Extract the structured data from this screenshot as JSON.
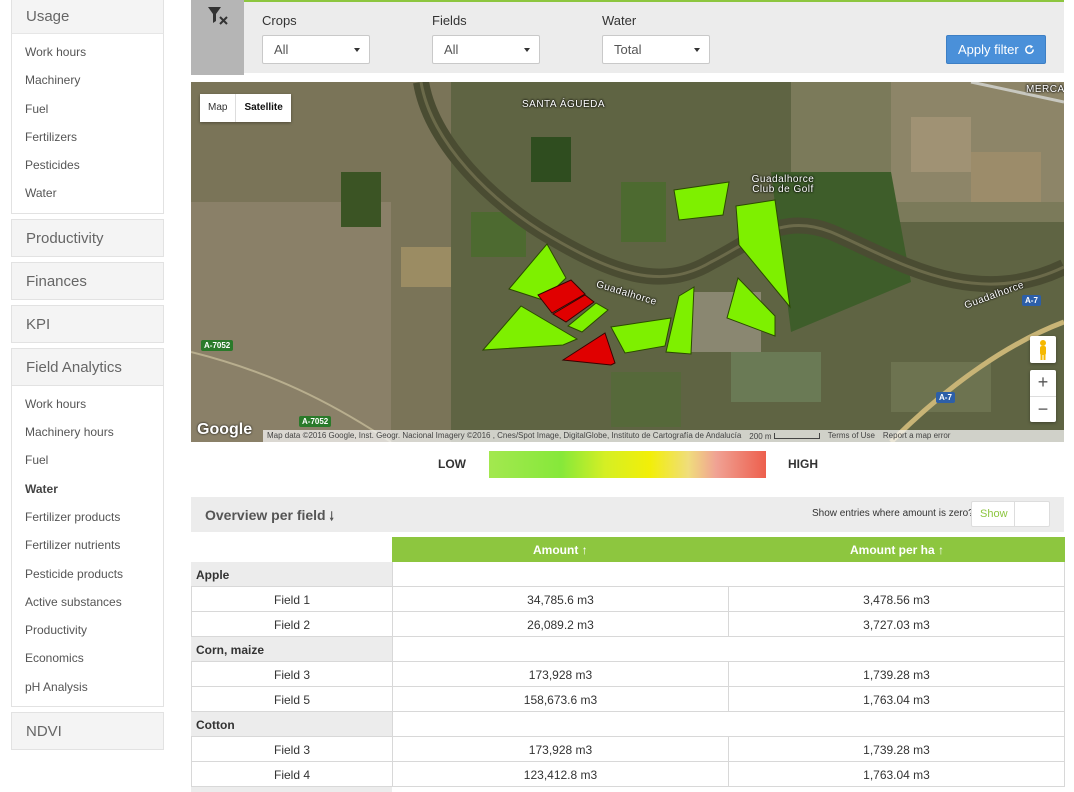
{
  "sidebar": {
    "usage_title": "Usage",
    "usage_items": [
      "Work hours",
      "Machinery",
      "Fuel",
      "Fertilizers",
      "Pesticides",
      "Water"
    ],
    "productivity": "Productivity",
    "finances": "Finances",
    "kpi": "KPI",
    "field_analytics_title": "Field Analytics",
    "field_analytics_items": [
      "Work hours",
      "Machinery hours",
      "Fuel",
      "Water",
      "Fertilizer products",
      "Fertilizer nutrients",
      "Pesticide products",
      "Active substances",
      "Productivity",
      "Economics",
      "pH Analysis"
    ],
    "field_analytics_active": "Water",
    "ndvi": "NDVI"
  },
  "filters": {
    "crops_label": "Crops",
    "crops_value": "All",
    "fields_label": "Fields",
    "fields_value": "All",
    "water_label": "Water",
    "water_value": "Total",
    "apply_label": "Apply filter",
    "filter_icon": "filter-clear-icon",
    "refresh_icon": "refresh-icon"
  },
  "map": {
    "type_map": "Map",
    "type_satellite": "Satellite",
    "labels": {
      "town": "SANTA ÁGUEDA",
      "river": "Guadalhorce",
      "golf": "Guadalhorce\nClub de Golf",
      "merca": "MERCA"
    },
    "road_badges": [
      "A-7052",
      "A-7052",
      "A-7",
      "A-7"
    ],
    "google": "Google",
    "attribution": "Map data ©2016 Google, Inst. Geogr. Nacional Imagery ©2016 , Cnes/Spot Image, DigitalGlobe, Instituto de Cartografía de Andalucía",
    "scale": "200 m",
    "terms": "Terms of Use",
    "report": "Report a map error",
    "zoom_in": "+",
    "zoom_out": "−",
    "colors": {
      "low": "#7ef000",
      "high": "#e00000"
    }
  },
  "legend": {
    "low": "LOW",
    "high": "HIGH"
  },
  "overview": {
    "title": "Overview per field",
    "zero_label": "Show entries where amount is zero?",
    "show_label": "Show",
    "col_amount": "Amount",
    "col_amount_per_ha": "Amount per ha",
    "groups": [
      {
        "crop": "Apple",
        "rows": [
          {
            "field": "Field 1",
            "amount": "34,785.6 m3",
            "per_ha": "3,478.56 m3"
          },
          {
            "field": "Field 2",
            "amount": "26,089.2 m3",
            "per_ha": "3,727.03 m3"
          }
        ]
      },
      {
        "crop": "Corn, maize",
        "rows": [
          {
            "field": "Field 3",
            "amount": "173,928 m3",
            "per_ha": "1,739.28 m3"
          },
          {
            "field": "Field 5",
            "amount": "158,673.6 m3",
            "per_ha": "1,763.04 m3"
          }
        ]
      },
      {
        "crop": "Cotton",
        "rows": [
          {
            "field": "Field 3",
            "amount": "173,928 m3",
            "per_ha": "1,739.28 m3"
          },
          {
            "field": "Field 4",
            "amount": "123,412.8 m3",
            "per_ha": "1,763.04 m3"
          }
        ]
      }
    ]
  }
}
